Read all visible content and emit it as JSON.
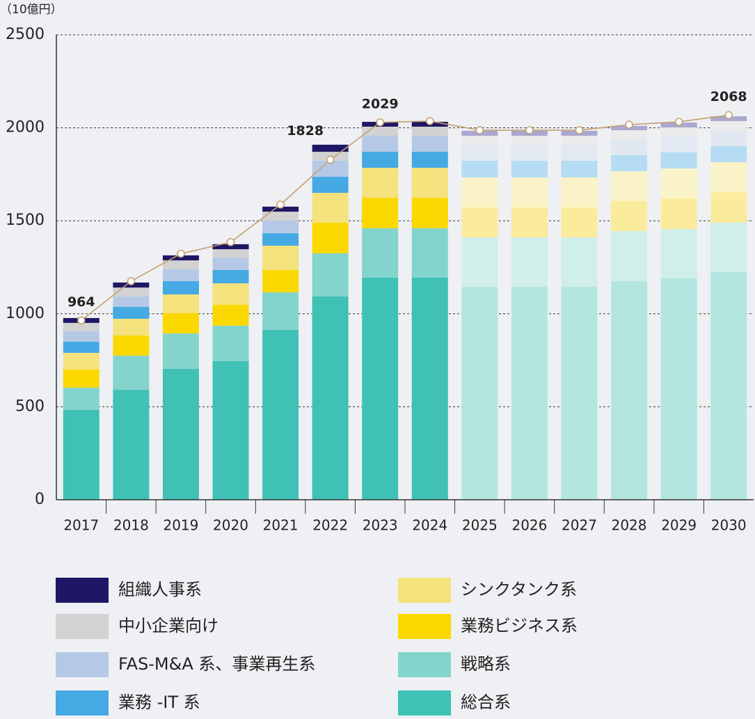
{
  "chart_data": {
    "type": "stacked_bar_line",
    "unit_label": "（10億円）",
    "categories": [
      "2017",
      "2018",
      "2019",
      "2020",
      "2021",
      "2022",
      "2023",
      "2024",
      "2025",
      "2026",
      "2027",
      "2028",
      "2029",
      "2030"
    ],
    "forecast_start": "2025",
    "ylim": [
      0,
      2500
    ],
    "yticks": [
      0,
      500,
      1000,
      1500,
      2000,
      2500
    ],
    "grid": true,
    "series": [
      {
        "name": "総合系",
        "color": "#3fc1b5",
        "forecast_color": "#b4e6e0",
        "values": [
          483,
          591,
          704,
          745,
          913,
          1093,
          1194,
          1194,
          1145,
          1145,
          1145,
          1175,
          1190,
          1224
        ]
      },
      {
        "name": "戦略系",
        "color": "#83d4cc",
        "forecast_color": "#d0eeea",
        "values": [
          120,
          184,
          190,
          191,
          202,
          232,
          266,
          266,
          266,
          266,
          266,
          270,
          266,
          266
        ]
      },
      {
        "name": "業務ビジネス系",
        "color": "#fbd800",
        "forecast_color": "#fbeb9c",
        "values": [
          97,
          108,
          109,
          112,
          120,
          165,
          164,
          164,
          161,
          161,
          161,
          161,
          165,
          164
        ]
      },
      {
        "name": "シンクタンク系",
        "color": "#f4e27c",
        "forecast_color": "#fbf3c8",
        "values": [
          90,
          90,
          101,
          116,
          131,
          160,
          161,
          161,
          161,
          161,
          161,
          160,
          160,
          161
        ]
      },
      {
        "name": "業務 -IT 系",
        "color": "#45a9e3",
        "forecast_color": "#b5dcf2",
        "values": [
          60,
          64,
          71,
          71,
          67,
          87,
          86,
          86,
          90,
          90,
          90,
          87,
          87,
          86
        ]
      },
      {
        "name": "FAS-M&A 系、事業再生系",
        "color": "#b5c8e5",
        "forecast_color": "#e2e8f2",
        "values": [
          56,
          56,
          64,
          67,
          68,
          86,
          86,
          86,
          86,
          86,
          86,
          86,
          86,
          86
        ]
      },
      {
        "name": "中小企業向け",
        "color": "#d2d2d2",
        "forecast_color": "#ebebeb",
        "values": [
          45,
          48,
          48,
          45,
          48,
          48,
          49,
          49,
          48,
          48,
          48,
          48,
          48,
          49
        ]
      },
      {
        "name": "組織人事系",
        "color": "#1f1766",
        "forecast_color": "#aaa8cf",
        "values": [
          26,
          27,
          27,
          27,
          27,
          38,
          26,
          26,
          27,
          27,
          27,
          23,
          26,
          26
        ]
      }
    ],
    "line": {
      "color": "#c4a070",
      "values": [
        964,
        1175,
        1323,
        1385,
        1587,
        1828,
        2029,
        2036,
        1987,
        1987,
        1987,
        2017,
        2032,
        2068
      ],
      "labels": [
        "964",
        null,
        null,
        null,
        null,
        "1828",
        "2029",
        null,
        null,
        null,
        null,
        null,
        null,
        "2068"
      ]
    },
    "legend_columns": [
      [
        7,
        6,
        5,
        4
      ],
      [
        3,
        2,
        1,
        0
      ]
    ]
  }
}
